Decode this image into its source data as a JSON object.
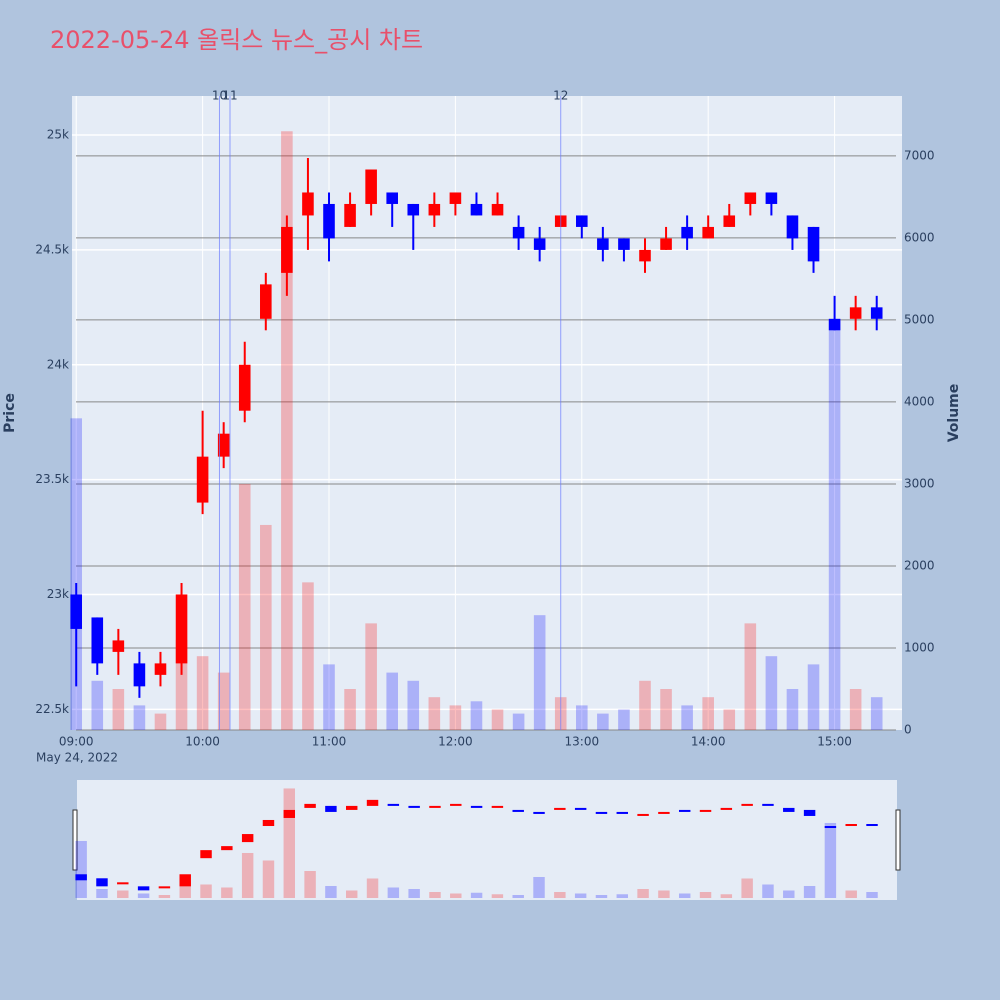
{
  "chart_data": {
    "type": "candlestick",
    "title": "2022-05-24 올릭스 뉴스_공시 차트",
    "ylabel": "Price",
    "y2label": "Volume",
    "x_date_label": "May 24, 2022",
    "increasing_color": "#ff0000",
    "decreasing_color": "#0000ff",
    "x": [
      "2022-05-24 09:00",
      "2022-05-24 09:10",
      "2022-05-24 09:20",
      "2022-05-24 09:30",
      "2022-05-24 09:40",
      "2022-05-24 09:50",
      "2022-05-24 10:00",
      "2022-05-24 10:10",
      "2022-05-24 10:20",
      "2022-05-24 10:30",
      "2022-05-24 10:40",
      "2022-05-24 10:50",
      "2022-05-24 11:00",
      "2022-05-24 11:10",
      "2022-05-24 11:20",
      "2022-05-24 11:30",
      "2022-05-24 11:40",
      "2022-05-24 11:50",
      "2022-05-24 12:00",
      "2022-05-24 12:10",
      "2022-05-24 12:20",
      "2022-05-24 12:30",
      "2022-05-24 12:40",
      "2022-05-24 12:50",
      "2022-05-24 13:00",
      "2022-05-24 13:10",
      "2022-05-24 13:20",
      "2022-05-24 13:30",
      "2022-05-24 13:40",
      "2022-05-24 13:50",
      "2022-05-24 14:00",
      "2022-05-24 14:10",
      "2022-05-24 14:20",
      "2022-05-24 14:30",
      "2022-05-24 14:40",
      "2022-05-24 14:50",
      "2022-05-24 15:00",
      "2022-05-24 15:10",
      "2022-05-24 15:20"
    ],
    "open": [
      23000,
      22900,
      22750,
      22700,
      22650,
      22700,
      23400,
      23600,
      23800,
      24200,
      24400,
      24650,
      24700,
      24600,
      24700,
      24750,
      24700,
      24650,
      24700,
      24700,
      24650,
      24600,
      24550,
      24600,
      24650,
      24550,
      24550,
      24450,
      24500,
      24600,
      24550,
      24600,
      24700,
      24750,
      24650,
      24600,
      24200,
      24200,
      24250
    ],
    "high": [
      23050,
      22900,
      22850,
      22750,
      22750,
      23050,
      23800,
      23750,
      24100,
      24400,
      24650,
      24900,
      24750,
      24750,
      24850,
      24750,
      24700,
      24750,
      24750,
      24750,
      24750,
      24650,
      24600,
      24650,
      24650,
      24600,
      24550,
      24550,
      24600,
      24650,
      24650,
      24700,
      24750,
      24750,
      24650,
      24600,
      24300,
      24300,
      24300
    ],
    "low": [
      22600,
      22650,
      22650,
      22550,
      22600,
      22650,
      23350,
      23550,
      23750,
      24150,
      24300,
      24500,
      24450,
      24600,
      24650,
      24600,
      24500,
      24600,
      24650,
      24650,
      24650,
      24500,
      24450,
      24600,
      24550,
      24450,
      24450,
      24400,
      24500,
      24500,
      24550,
      24600,
      24650,
      24650,
      24500,
      24400,
      24150,
      24150,
      24150
    ],
    "close": [
      22850,
      22700,
      22800,
      22600,
      22700,
      23000,
      23600,
      23700,
      24000,
      24350,
      24600,
      24750,
      24550,
      24700,
      24850,
      24700,
      24650,
      24700,
      24750,
      24650,
      24700,
      24550,
      24500,
      24650,
      24600,
      24500,
      24500,
      24500,
      24550,
      24550,
      24600,
      24650,
      24750,
      24700,
      24550,
      24450,
      24150,
      24250,
      24200
    ],
    "volume": [
      3800,
      600,
      500,
      300,
      200,
      1100,
      900,
      700,
      3000,
      2500,
      7300,
      1800,
      800,
      500,
      1300,
      700,
      600,
      400,
      300,
      350,
      250,
      200,
      1400,
      400,
      300,
      200,
      250,
      600,
      500,
      300,
      400,
      250,
      1300,
      900,
      500,
      800,
      5000,
      500,
      400
    ],
    "xlim": [
      "2022-05-24 08:58",
      "2022-05-24 15:32"
    ],
    "xticks": [
      {
        "value": "2022-05-24 09:00",
        "label": "09:00"
      },
      {
        "value": "2022-05-24 10:00",
        "label": "10:00"
      },
      {
        "value": "2022-05-24 11:00",
        "label": "11:00"
      },
      {
        "value": "2022-05-24 12:00",
        "label": "12:00"
      },
      {
        "value": "2022-05-24 13:00",
        "label": "13:00"
      },
      {
        "value": "2022-05-24 14:00",
        "label": "14:00"
      },
      {
        "value": "2022-05-24 15:00",
        "label": "15:00"
      }
    ],
    "ylim": [
      22410,
      25170
    ],
    "yticks": [
      {
        "value": 22500,
        "label": "22.5k"
      },
      {
        "value": 23000,
        "label": "23k"
      },
      {
        "value": 23500,
        "label": "23.5k"
      },
      {
        "value": 24000,
        "label": "24k"
      },
      {
        "value": 24500,
        "label": "24.5k"
      },
      {
        "value": 25000,
        "label": "25k"
      }
    ],
    "y2lim": [
      0,
      7730
    ],
    "y2ticks": [
      0,
      1000,
      2000,
      3000,
      4000,
      5000,
      6000,
      7000
    ],
    "annotations": [
      {
        "x": "2022-05-24 10:08",
        "text": "10"
      },
      {
        "x": "2022-05-24 10:13",
        "text": "11"
      },
      {
        "x": "2022-05-24 12:50",
        "text": "12"
      }
    ],
    "grid": true
  }
}
